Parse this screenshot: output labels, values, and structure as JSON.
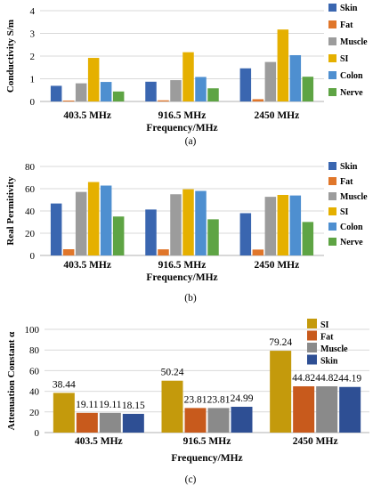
{
  "chart_data": [
    {
      "id": "a",
      "type": "bar",
      "panel_label": "(a)",
      "categories": [
        "403.5 MHz",
        "916.5 MHz",
        "2450 MHz"
      ],
      "xlabel": "Frequency/MHz",
      "ylabel": "Conductivity S/m",
      "ylim": [
        0,
        4
      ],
      "yticks": [
        "0",
        "1",
        "2",
        "3",
        "4"
      ],
      "grid": true,
      "legend_position": "right",
      "series": [
        {
          "name": "Skin",
          "color": "#3a66b0",
          "values": [
            0.69,
            0.87,
            1.46
          ]
        },
        {
          "name": "Fat",
          "color": "#e0762a",
          "values": [
            0.04,
            0.05,
            0.1
          ]
        },
        {
          "name": "Muscle",
          "color": "#9c9c9c",
          "values": [
            0.8,
            0.94,
            1.74
          ]
        },
        {
          "name": "SI",
          "color": "#e5b000",
          "values": [
            1.92,
            2.17,
            3.17
          ]
        },
        {
          "name": "Colon",
          "color": "#4e8fd0",
          "values": [
            0.86,
            1.08,
            2.04
          ]
        },
        {
          "name": "Nerve",
          "color": "#5ea444",
          "values": [
            0.44,
            0.58,
            1.09
          ]
        }
      ]
    },
    {
      "id": "b",
      "type": "bar",
      "panel_label": "(b)",
      "categories": [
        "403.5 MHz",
        "916.5 MHz",
        "2450 MHz"
      ],
      "xlabel": "Frequency/MHz",
      "ylabel": "Real Permitivity",
      "ylim": [
        0,
        80
      ],
      "yticks": [
        "0",
        "20",
        "40",
        "60",
        "80"
      ],
      "grid": true,
      "legend_position": "right",
      "series": [
        {
          "name": "Skin",
          "color": "#3a66b0",
          "values": [
            46.7,
            41.3,
            38.0
          ]
        },
        {
          "name": "Fat",
          "color": "#e0762a",
          "values": [
            5.6,
            5.5,
            5.3
          ]
        },
        {
          "name": "Muscle",
          "color": "#9c9c9c",
          "values": [
            57.1,
            55.0,
            52.7
          ]
        },
        {
          "name": "SI",
          "color": "#e5b000",
          "values": [
            66.0,
            59.5,
            54.4
          ]
        },
        {
          "name": "Colon",
          "color": "#4e8fd0",
          "values": [
            62.8,
            58.0,
            53.9
          ]
        },
        {
          "name": "Nerve",
          "color": "#5ea444",
          "values": [
            35.0,
            32.5,
            30.1
          ]
        }
      ]
    },
    {
      "id": "c",
      "type": "bar",
      "panel_label": "(c)",
      "categories": [
        "403.5 MHz",
        "916.5 MHz",
        "2450 MHz"
      ],
      "xlabel": "Frequency/MHz",
      "ylabel": "Attenuation Constant α",
      "ylim": [
        0,
        100
      ],
      "yticks": [
        "0",
        "20",
        "40",
        "60",
        "80",
        "100"
      ],
      "grid": true,
      "legend_position": "top-right",
      "series": [
        {
          "name": "SI",
          "color": "#c49a0c",
          "values": [
            38.44,
            50.24,
            79.24
          ],
          "labels": [
            "38.44",
            "50.24",
            "79.24"
          ]
        },
        {
          "name": "Fat",
          "color": "#c85a1c",
          "values": [
            19.11,
            23.81,
            44.82
          ],
          "labels": [
            "19.11",
            "23.81",
            "44.82"
          ]
        },
        {
          "name": "Muscle",
          "color": "#8a8a8a",
          "values": [
            19.11,
            23.81,
            44.82
          ],
          "labels": [
            "19.11",
            "23.81",
            "44.82"
          ]
        },
        {
          "name": "Skin",
          "color": "#2e4f94",
          "values": [
            18.15,
            24.99,
            44.19
          ],
          "labels": [
            "18.15",
            "24.99",
            "44.19"
          ]
        }
      ]
    }
  ]
}
